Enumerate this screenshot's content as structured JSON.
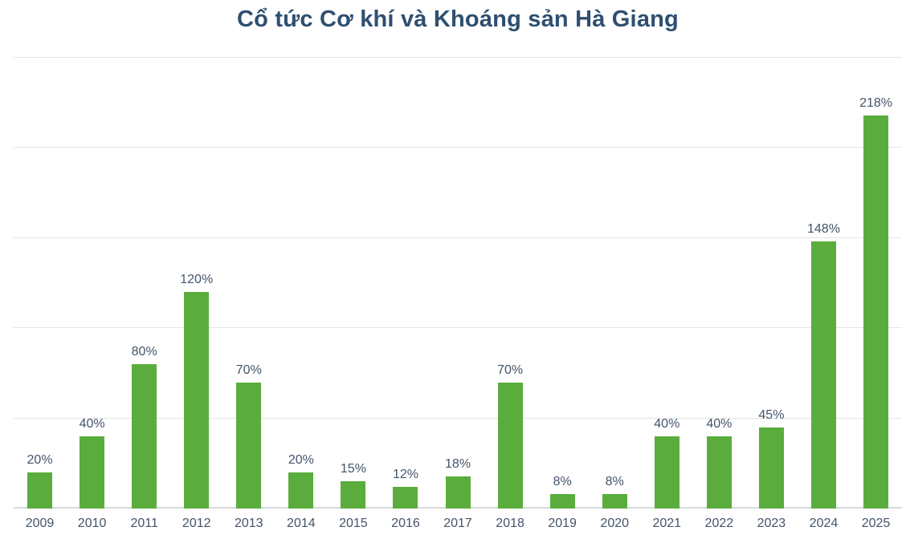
{
  "chart_data": {
    "type": "bar",
    "title": "Cổ tức Cơ khí và Khoáng sản Hà Giang",
    "categories": [
      "2009",
      "2010",
      "2011",
      "2012",
      "2013",
      "2014",
      "2015",
      "2016",
      "2017",
      "2018",
      "2019",
      "2020",
      "2021",
      "2022",
      "2023",
      "2024",
      "2025"
    ],
    "values": [
      20,
      40,
      80,
      120,
      70,
      20,
      15,
      12,
      18,
      70,
      8,
      8,
      40,
      40,
      45,
      148,
      218
    ],
    "data_labels": [
      "20%",
      "40%",
      "80%",
      "120%",
      "70%",
      "20%",
      "15%",
      "12%",
      "18%",
      "70%",
      "8%",
      "8%",
      "40%",
      "40%",
      "45%",
      "148%",
      "218%"
    ],
    "xlabel": "",
    "ylabel": "",
    "ylim": [
      0,
      250
    ],
    "gridline_step": 50,
    "grid": true,
    "y_axis_labels_visible": false,
    "legend": false
  },
  "colors": {
    "bar": "#5aad3c",
    "title": "#2e4f70",
    "label": "#44546a",
    "gridline": "#e3e6e6",
    "axis_line": "#d6dada",
    "background": "#ffffff"
  }
}
